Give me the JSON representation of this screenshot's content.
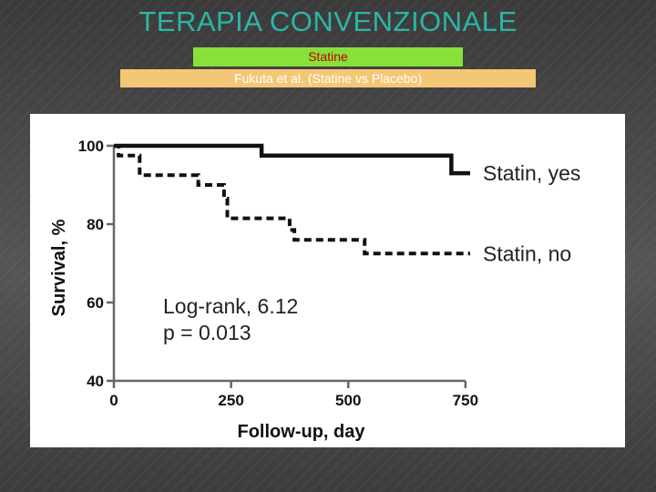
{
  "slide": {
    "title": "TERAPIA CONVENZIONALE",
    "banner_green": "Statine",
    "banner_orange": "Fukuta et al. (Statine vs Placebo)"
  },
  "colors": {
    "title": "#2cb5a6",
    "banner_green_bg": "#88e03a",
    "banner_green_text": "#c00000",
    "banner_orange_bg": "#f4c777",
    "banner_orange_text": "#ffffff"
  },
  "chart_data": {
    "type": "line",
    "subtype": "kaplan-meier step",
    "title": "",
    "xlabel": "Follow-up, day",
    "ylabel": "Survival, %",
    "xlim": [
      0,
      760
    ],
    "ylim": [
      40,
      100
    ],
    "xticks": [
      "0",
      "250",
      "500",
      "750"
    ],
    "yticks": [
      "40",
      "60",
      "80",
      "100"
    ],
    "grid": false,
    "legend": "inline labels at right end of each curve",
    "series": [
      {
        "name": "Statin, yes",
        "style": "solid",
        "points": [
          [
            0,
            100
          ],
          [
            315,
            100
          ],
          [
            315,
            97.5
          ],
          [
            720,
            97.5
          ],
          [
            720,
            93
          ],
          [
            760,
            93
          ]
        ]
      },
      {
        "name": "Statin, no",
        "style": "dashed",
        "points": [
          [
            0,
            100
          ],
          [
            10,
            100
          ],
          [
            10,
            97.5
          ],
          [
            55,
            97.5
          ],
          [
            55,
            92.5
          ],
          [
            180,
            92.5
          ],
          [
            180,
            90
          ],
          [
            235,
            90
          ],
          [
            235,
            86.5
          ],
          [
            242,
            86.5
          ],
          [
            242,
            81.5
          ],
          [
            375,
            81.5
          ],
          [
            375,
            78.5
          ],
          [
            385,
            78.5
          ],
          [
            385,
            76
          ],
          [
            535,
            76
          ],
          [
            535,
            72.5
          ],
          [
            760,
            72.5
          ]
        ]
      }
    ],
    "annotations": [
      "Log-rank, 6.12",
      "p = 0.013"
    ]
  }
}
